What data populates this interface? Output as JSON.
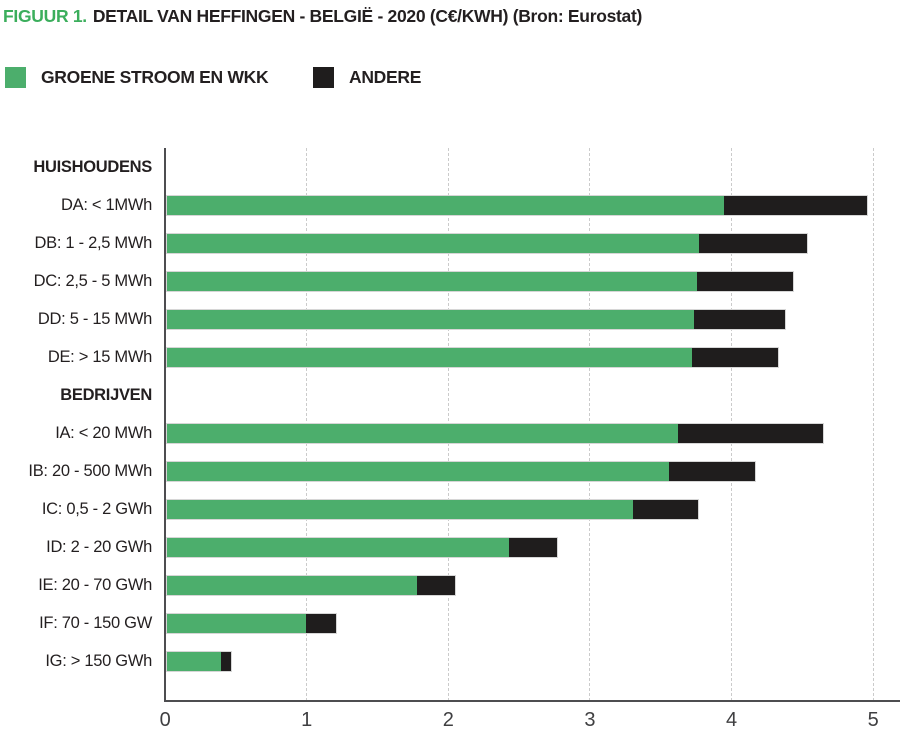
{
  "title": {
    "prefix": "FIGUUR 1.",
    "text": "DETAIL VAN HEFFINGEN - BELGIË - 2020 (C€/KWH) (Bron: Eurostat)"
  },
  "colors": {
    "title_accent": "#3bae5c",
    "series_green": "#4cae6c",
    "series_black": "#1f1d1d",
    "axis": "#4d4d50",
    "gridline": "#cbcbcb",
    "text": "#231f20",
    "bar_outline": "#d6d6d6"
  },
  "legend": [
    {
      "label": "GROENE STROOM EN WKK",
      "color": "#4cae6c"
    },
    {
      "label": "ANDERE",
      "color": "#1f1d1d"
    }
  ],
  "chart_data": {
    "type": "bar",
    "orientation": "horizontal",
    "stacked": true,
    "title": "FIGUUR 1. DETAIL VAN HEFFINGEN - BELGIË - 2020 (C€/KWH) (Bron: Eurostat)",
    "unit": "C€/KWH",
    "xlabel": "",
    "ylabel": "",
    "xlim": [
      0,
      5
    ],
    "xticks": [
      0,
      1,
      2,
      3,
      4,
      5
    ],
    "grid": "vertical-dashed",
    "legend_position": "top",
    "series": [
      {
        "name": "GROENE STROOM EN WKK",
        "color": "#4cae6c"
      },
      {
        "name": "ANDERE",
        "color": "#1f1d1d"
      }
    ],
    "groups": [
      {
        "header": "HUISHOUDENS",
        "rows": [
          {
            "label": "DA: < 1MWh",
            "values": [
              3.95,
              1.01
            ]
          },
          {
            "label": "DB: 1 - 2,5 MWh",
            "values": [
              3.77,
              0.77
            ]
          },
          {
            "label": "DC: 2,5 - 5 MWh",
            "values": [
              3.76,
              0.68
            ]
          },
          {
            "label": "DD: 5 - 15 MWh",
            "values": [
              3.74,
              0.64
            ]
          },
          {
            "label": "DE: > 15 MWh",
            "values": [
              3.72,
              0.61
            ]
          }
        ]
      },
      {
        "header": "BEDRIJVEN",
        "rows": [
          {
            "label": "IA: < 20 MWh",
            "values": [
              3.62,
              1.03
            ]
          },
          {
            "label": "IB: 20 - 500 MWh",
            "values": [
              3.56,
              0.61
            ]
          },
          {
            "label": "IC: 0,5 - 2 GWh",
            "values": [
              3.31,
              0.46
            ]
          },
          {
            "label": "ID: 2 - 20 GWh",
            "values": [
              2.43,
              0.34
            ]
          },
          {
            "label": "IE: 20 - 70 GWh",
            "values": [
              1.78,
              0.27
            ]
          },
          {
            "label": "IF: 70 - 150 GW",
            "values": [
              1.0,
              0.21
            ]
          },
          {
            "label": "IG: > 150 GWh",
            "values": [
              0.4,
              0.07
            ]
          }
        ]
      }
    ]
  }
}
